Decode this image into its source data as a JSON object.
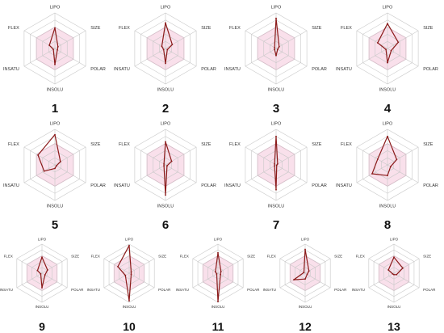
{
  "chart_data": {
    "type": "radar",
    "axes": [
      "LIPO",
      "SIZE",
      "POLAR",
      "INSOLU",
      "INSATU",
      "FLEX"
    ],
    "rings": 5,
    "range": [
      0,
      1
    ],
    "optimal_zone": {
      "fill": "#f7d6e4",
      "stroke": "#f0a8c8",
      "values": [
        0.6,
        0.6,
        0.6,
        0.6,
        0.6,
        0.6
      ]
    },
    "grid_color": "#c8c8c8",
    "series_color": "#8b1a1a",
    "panels": [
      {
        "label": "1",
        "values": [
          0.58,
          0.1,
          0.08,
          0.45,
          0.05,
          0.18
        ]
      },
      {
        "label": "2",
        "values": [
          0.72,
          0.22,
          0.06,
          0.42,
          0.06,
          0.12
        ]
      },
      {
        "label": "3",
        "values": [
          0.85,
          0.1,
          0.05,
          0.2,
          0.05,
          0.05
        ]
      },
      {
        "label": "4",
        "values": [
          0.7,
          0.35,
          0.12,
          0.4,
          0.05,
          0.32
        ]
      },
      {
        "label": "5",
        "values": [
          0.85,
          0.18,
          0.05,
          0.1,
          0.35,
          0.55
        ]
      },
      {
        "label": "6",
        "values": [
          0.65,
          0.2,
          0.05,
          0.85,
          0.05,
          0.05
        ]
      },
      {
        "label": "7",
        "values": [
          0.8,
          0.05,
          0.02,
          0.7,
          0.05,
          0.05
        ]
      },
      {
        "label": "8",
        "values": [
          0.8,
          0.3,
          0.1,
          0.3,
          0.5,
          0.32
        ]
      },
      {
        "label": "9",
        "values": [
          0.55,
          0.22,
          0.12,
          0.5,
          0.05,
          0.18
        ]
      },
      {
        "label": "10",
        "values": [
          0.95,
          0.08,
          0.08,
          0.95,
          0.15,
          0.45
        ]
      },
      {
        "label": "11",
        "values": [
          0.7,
          0.12,
          0.1,
          0.98,
          0.05,
          0.1
        ]
      },
      {
        "label": "12",
        "values": [
          0.82,
          0.15,
          0.08,
          0.2,
          0.45,
          0.05
        ]
      },
      {
        "label": "13",
        "values": [
          0.55,
          0.35,
          0.1,
          0.05,
          0.05,
          0.22
        ]
      }
    ]
  }
}
